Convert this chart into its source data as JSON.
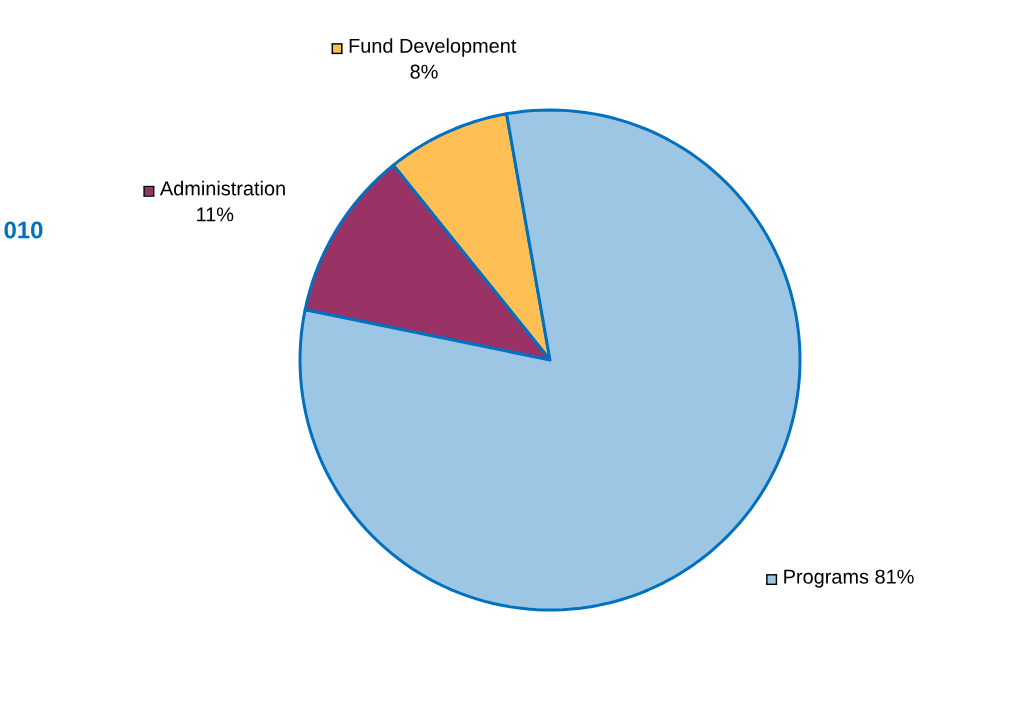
{
  "chart_data": {
    "type": "pie",
    "title": "010",
    "categories": [
      "Fund Development",
      "Administration",
      "Programs"
    ],
    "values": [
      8,
      11,
      81
    ],
    "value_labels": [
      "8%",
      "11%",
      "81%"
    ],
    "colors": [
      "#ffbf55",
      "#993366",
      "#9dc6e4"
    ],
    "legend": "top left"
  }
}
